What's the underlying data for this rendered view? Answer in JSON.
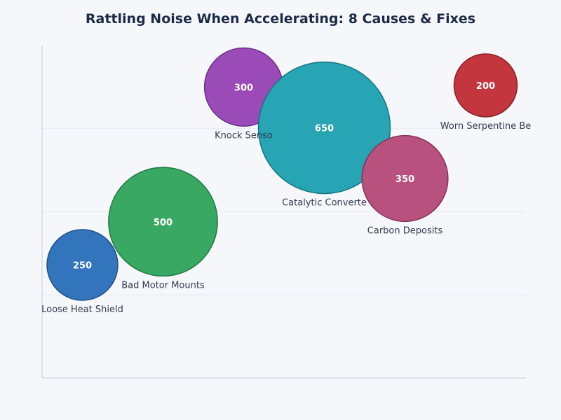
{
  "chart_data": {
    "type": "bubble",
    "title": "Rattling Noise When Accelerating: 8 Causes & Fixes",
    "xlabel": "",
    "ylabel": "",
    "xlim": [
      0,
      6
    ],
    "ylim": [
      0,
      4
    ],
    "grid": true,
    "points": [
      {
        "label": "Loose Heat Shield",
        "x": 0.5,
        "y": 1.36,
        "size": 250,
        "color": "#3375bd",
        "stroke": "#1f4f8a"
      },
      {
        "label": "Bad Motor Mounts",
        "x": 1.5,
        "y": 1.88,
        "size": 500,
        "color": "#38a862",
        "stroke": "#227a40"
      },
      {
        "label": "Knock Senso",
        "x": 2.5,
        "y": 3.5,
        "size": 300,
        "color": "#9b4bb8",
        "stroke": "#6d2e88"
      },
      {
        "label": "Catalytic Converte",
        "x": 3.5,
        "y": 3.01,
        "size": 650,
        "color": "#27a5b4",
        "stroke": "#17757f"
      },
      {
        "label": "Carbon Deposits",
        "x": 4.5,
        "y": 2.4,
        "size": 350,
        "color": "#b9517f",
        "stroke": "#84325a"
      },
      {
        "label": "Worn Serpentine Be",
        "x": 5.5,
        "y": 3.52,
        "size": 200,
        "color": "#c4363e",
        "stroke": "#8a1f25"
      }
    ]
  }
}
